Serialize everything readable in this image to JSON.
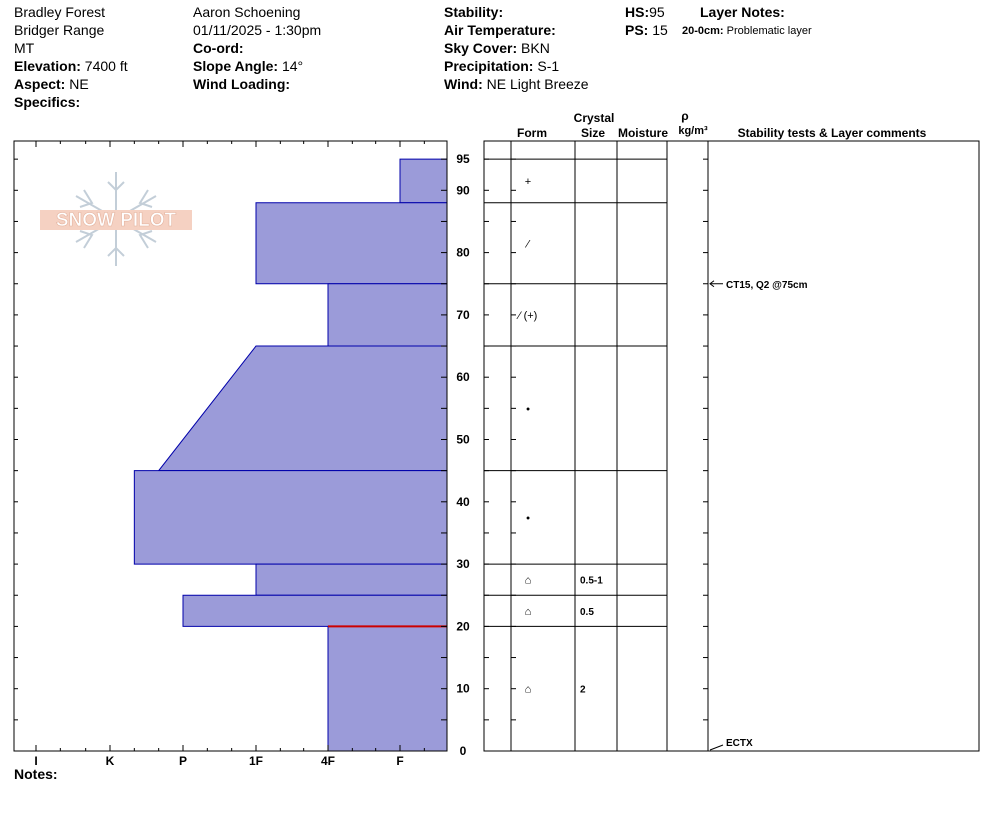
{
  "header": {
    "location": "Bradley Forest",
    "range": "Bridger Range",
    "state": "MT",
    "elevation_label": "Elevation:",
    "elevation_value": "7400 ft",
    "aspect_label": "Aspect:",
    "aspect_value": "NE",
    "specifics_label": "Specifics:",
    "observer": "Aaron Schoening",
    "datetime": "01/11/2025 - 1:30pm",
    "coord_label": "Co-ord:",
    "slope_label": "Slope Angle:",
    "slope_value": "14°",
    "wind_loading_label": "Wind Loading:",
    "stability_label": "Stability:",
    "air_temp_label": "Air Temperature:",
    "sky_label": "Sky Cover:",
    "sky_value": "BKN",
    "precip_label": "Precipitation:",
    "precip_value": "S-1",
    "wind_label": "Wind:",
    "wind_value": "NE Light Breeze",
    "hs_label": "HS:",
    "hs_value": "95",
    "ps_label": "PS:",
    "ps_value": "15",
    "layer_notes_label": "Layer Notes:",
    "layer_note_depth": "20-0cm:",
    "layer_note_text": "Problematic layer"
  },
  "logo": {
    "text": "SNOW PILOT"
  },
  "footer": {
    "notes_label": "Notes:"
  },
  "columns": {
    "crystal": "Crystal",
    "form": "Form",
    "size": "Size",
    "moisture": "Moisture",
    "rho": "ρ",
    "density_unit": "kg/m³",
    "stability": "Stability tests & Layer comments"
  },
  "chart_data": {
    "type": "snow-profile",
    "y_axis": {
      "ticks": [
        0,
        10,
        20,
        30,
        40,
        50,
        60,
        70,
        80,
        90,
        95
      ],
      "range": [
        0,
        95
      ]
    },
    "hardness_scale": [
      "I",
      "K",
      "P",
      "1F",
      "4F",
      "F"
    ],
    "layers": [
      {
        "top": 95,
        "bottom": 88,
        "hardness": "F",
        "form": "+",
        "size": ""
      },
      {
        "top": 88,
        "bottom": 75,
        "hardness": "1F",
        "form": "⁄",
        "size": ""
      },
      {
        "top": 75,
        "bottom": 65,
        "hardness": "4F",
        "form": "⁄ (+)",
        "size": ""
      },
      {
        "top": 65,
        "bottom": 45,
        "hardness_top": "1F",
        "hardness_bottom": "P-",
        "form": "•",
        "size": ""
      },
      {
        "top": 45,
        "bottom": 30,
        "hardness": "K+",
        "form": "•",
        "size": ""
      },
      {
        "top": 30,
        "bottom": 25,
        "hardness": "1F",
        "form": "⌂",
        "size": "0.5-1"
      },
      {
        "top": 25,
        "bottom": 20,
        "hardness": "P",
        "form": "⌂",
        "size": "0.5"
      },
      {
        "top": 20,
        "bottom": 0,
        "hardness": "4F",
        "form": "⌂",
        "size": "2"
      }
    ],
    "problem_layer_depth": 20,
    "stability_tests": [
      {
        "depth": 75,
        "text": "CT15, Q2 @75cm"
      },
      {
        "depth": 0,
        "text": "ECTX"
      }
    ],
    "colors": {
      "fill": "#9b9bd9",
      "stroke": "#0000aa",
      "problem": "#cc0000"
    }
  }
}
